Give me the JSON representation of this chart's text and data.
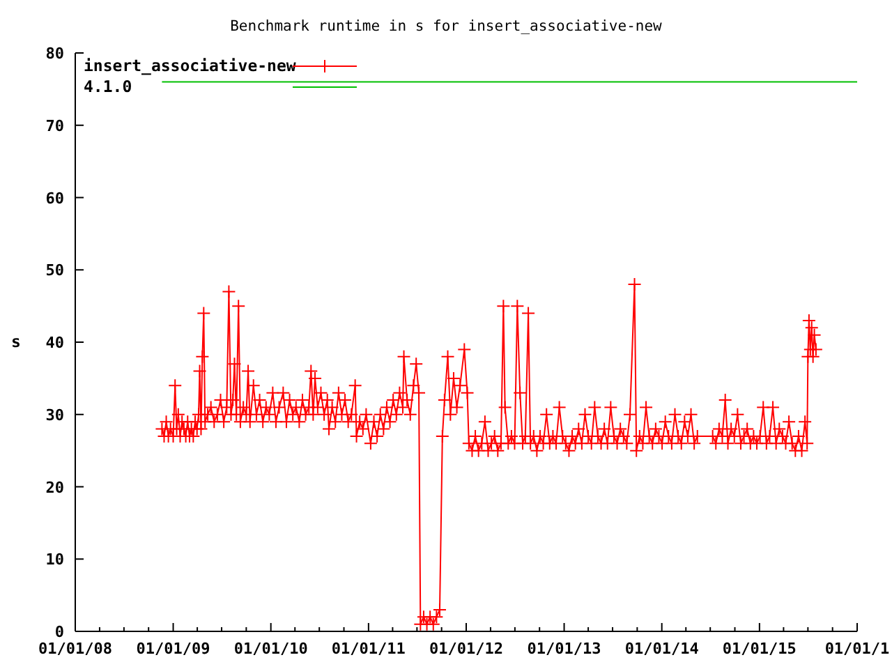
{
  "chart_data": {
    "type": "line",
    "title": "Benchmark runtime in s for insert_associative-new",
    "ylabel": "s",
    "xlim": [
      "2008-01-01",
      "2016-01-01"
    ],
    "xticks": [
      {
        "value": "2008-01-01",
        "label": "01/01/08"
      },
      {
        "value": "2008-04-01",
        "label": null
      },
      {
        "value": "2008-07-01",
        "label": null
      },
      {
        "value": "2008-10-01",
        "label": null
      },
      {
        "value": "2009-01-01",
        "label": "01/01/09"
      },
      {
        "value": "2009-04-01",
        "label": null
      },
      {
        "value": "2009-07-01",
        "label": null
      },
      {
        "value": "2009-10-01",
        "label": null
      },
      {
        "value": "2010-01-01",
        "label": "01/01/10"
      },
      {
        "value": "2010-04-01",
        "label": null
      },
      {
        "value": "2010-07-01",
        "label": null
      },
      {
        "value": "2010-10-01",
        "label": null
      },
      {
        "value": "2011-01-01",
        "label": "01/01/11"
      },
      {
        "value": "2011-04-01",
        "label": null
      },
      {
        "value": "2011-07-01",
        "label": null
      },
      {
        "value": "2011-10-01",
        "label": null
      },
      {
        "value": "2012-01-01",
        "label": "01/01/12"
      },
      {
        "value": "2012-04-01",
        "label": null
      },
      {
        "value": "2012-07-01",
        "label": null
      },
      {
        "value": "2012-10-01",
        "label": null
      },
      {
        "value": "2013-01-01",
        "label": "01/01/13"
      },
      {
        "value": "2013-04-01",
        "label": null
      },
      {
        "value": "2013-07-01",
        "label": null
      },
      {
        "value": "2013-10-01",
        "label": null
      },
      {
        "value": "2014-01-01",
        "label": "01/01/14"
      },
      {
        "value": "2014-04-01",
        "label": null
      },
      {
        "value": "2014-07-01",
        "label": null
      },
      {
        "value": "2014-10-01",
        "label": null
      },
      {
        "value": "2015-01-01",
        "label": "01/01/15"
      },
      {
        "value": "2015-04-01",
        "label": null
      },
      {
        "value": "2015-07-01",
        "label": null
      },
      {
        "value": "2015-10-01",
        "label": null
      },
      {
        "value": "2016-01-01",
        "label": "01/01/1"
      }
    ],
    "ylim": [
      0,
      80
    ],
    "yticks": [
      0,
      10,
      20,
      30,
      40,
      50,
      60,
      70,
      80
    ],
    "grid": false,
    "legend": "top left",
    "marker": "cross",
    "line_style": "solid",
    "series": [
      {
        "name": "insert_associative-new",
        "color": "#ff0000",
        "x": [
          "2008-11-20",
          "2008-11-28",
          "2008-12-06",
          "2008-12-14",
          "2008-12-22",
          "2009-01-01",
          "2009-01-08",
          "2009-01-14",
          "2009-01-20",
          "2009-01-27",
          "2009-02-03",
          "2009-02-10",
          "2009-02-17",
          "2009-02-24",
          "2009-03-03",
          "2009-03-10",
          "2009-03-17",
          "2009-03-24",
          "2009-03-31",
          "2009-04-06",
          "2009-04-10",
          "2009-04-15",
          "2009-04-20",
          "2009-04-25",
          "2009-04-30",
          "2009-05-10",
          "2009-05-22",
          "2009-06-03",
          "2009-06-15",
          "2009-06-27",
          "2009-07-09",
          "2009-07-20",
          "2009-07-28",
          "2009-08-05",
          "2009-08-12",
          "2009-08-18",
          "2009-08-25",
          "2009-09-02",
          "2009-09-09",
          "2009-09-20",
          "2009-10-01",
          "2009-10-08",
          "2009-10-15",
          "2009-10-28",
          "2009-11-08",
          "2009-11-20",
          "2009-12-02",
          "2009-12-14",
          "2009-12-26",
          "2010-01-08",
          "2010-01-20",
          "2010-02-01",
          "2010-02-16",
          "2010-02-28",
          "2010-03-12",
          "2010-03-24",
          "2010-04-05",
          "2010-04-17",
          "2010-04-29",
          "2010-05-11",
          "2010-05-23",
          "2010-05-31",
          "2010-06-08",
          "2010-06-15",
          "2010-06-25",
          "2010-07-07",
          "2010-07-19",
          "2010-07-31",
          "2010-08-06",
          "2010-08-18",
          "2010-08-30",
          "2010-09-11",
          "2010-09-23",
          "2010-10-05",
          "2010-10-17",
          "2010-10-29",
          "2010-11-12",
          "2010-11-17",
          "2010-11-29",
          "2010-12-11",
          "2010-12-23",
          "2011-01-09",
          "2011-01-21",
          "2011-02-02",
          "2011-02-14",
          "2011-02-26",
          "2011-03-10",
          "2011-03-22",
          "2011-04-03",
          "2011-04-15",
          "2011-04-27",
          "2011-05-09",
          "2011-05-13",
          "2011-05-25",
          "2011-06-06",
          "2011-06-18",
          "2011-06-28",
          "2011-07-08",
          "2011-07-14",
          "2011-07-26",
          "2011-08-07",
          "2011-08-19",
          "2011-08-31",
          "2011-09-12",
          "2011-09-24",
          "2011-10-04",
          "2011-10-12",
          "2011-10-24",
          "2011-11-03",
          "2011-11-15",
          "2011-11-27",
          "2011-12-09",
          "2011-12-25",
          "2012-01-05",
          "2012-01-11",
          "2012-01-23",
          "2012-02-04",
          "2012-02-16",
          "2012-02-28",
          "2012-03-11",
          "2012-03-23",
          "2012-04-04",
          "2012-04-16",
          "2012-04-28",
          "2012-05-10",
          "2012-05-19",
          "2012-05-25",
          "2012-06-06",
          "2012-06-18",
          "2012-06-30",
          "2012-07-10",
          "2012-07-20",
          "2012-07-30",
          "2012-08-09",
          "2012-08-20",
          "2012-08-28",
          "2012-09-09",
          "2012-09-21",
          "2012-10-03",
          "2012-10-15",
          "2012-10-27",
          "2012-11-08",
          "2012-11-20",
          "2012-12-02",
          "2012-12-14",
          "2012-12-26",
          "2013-01-07",
          "2013-01-19",
          "2013-01-31",
          "2013-02-12",
          "2013-02-24",
          "2013-03-08",
          "2013-03-20",
          "2013-04-01",
          "2013-04-13",
          "2013-04-25",
          "2013-05-07",
          "2013-05-19",
          "2013-05-31",
          "2013-06-12",
          "2013-06-24",
          "2013-07-06",
          "2013-07-18",
          "2013-07-30",
          "2013-08-11",
          "2013-08-23",
          "2013-09-04",
          "2013-09-21",
          "2013-09-28",
          "2013-10-10",
          "2013-10-22",
          "2013-11-03",
          "2013-11-15",
          "2013-11-27",
          "2013-12-09",
          "2013-12-21",
          "2014-01-02",
          "2014-01-14",
          "2014-01-26",
          "2014-02-07",
          "2014-02-19",
          "2014-03-03",
          "2014-03-15",
          "2014-03-27",
          "2014-04-08",
          "2014-04-20",
          "2014-05-02",
          "2014-05-14",
          "2014-07-10",
          "2014-07-22",
          "2014-08-03",
          "2014-08-15",
          "2014-08-26",
          "2014-09-05",
          "2014-09-17",
          "2014-09-29",
          "2014-10-11",
          "2014-10-23",
          "2014-11-04",
          "2014-11-16",
          "2014-11-28",
          "2014-12-10",
          "2014-12-22",
          "2015-01-03",
          "2015-01-15",
          "2015-01-27",
          "2015-02-08",
          "2015-02-20",
          "2015-03-04",
          "2015-03-16",
          "2015-03-28",
          "2015-04-09",
          "2015-04-21",
          "2015-05-03",
          "2015-05-15",
          "2015-05-27",
          "2015-06-08",
          "2015-06-20",
          "2015-06-28",
          "2015-07-01",
          "2015-07-05",
          "2015-07-10",
          "2015-07-15",
          "2015-07-20",
          "2015-07-25",
          "2015-07-31"
        ],
        "values": [
          28,
          27,
          29,
          27,
          28,
          27,
          34,
          28,
          30,
          27,
          29,
          28,
          27,
          29,
          27,
          28,
          27,
          29,
          28,
          30,
          36,
          28,
          38,
          44,
          29,
          30,
          31,
          29,
          30,
          32,
          29,
          31,
          47,
          30,
          32,
          37,
          30,
          45,
          29,
          31,
          30,
          36,
          29,
          34,
          30,
          32,
          29,
          31,
          30,
          33,
          29,
          31,
          33,
          29,
          32,
          30,
          31,
          29,
          32,
          30,
          31,
          36,
          30,
          35,
          31,
          33,
          30,
          32,
          28,
          31,
          29,
          33,
          30,
          32,
          29,
          30,
          34,
          27,
          29,
          28,
          30,
          26,
          29,
          27,
          30,
          28,
          31,
          29,
          32,
          30,
          33,
          31,
          38,
          32,
          30,
          34,
          37,
          33,
          1,
          2,
          1,
          2,
          1,
          2,
          3,
          27,
          32,
          38,
          30,
          35,
          31,
          34,
          39,
          33,
          26,
          25,
          27,
          25,
          26,
          29,
          25,
          26,
          27,
          25,
          26,
          45,
          31,
          26,
          27,
          26,
          45,
          33,
          26,
          27,
          44,
          26,
          27,
          25,
          27,
          26,
          30,
          26,
          27,
          26,
          31,
          27,
          26,
          25,
          27,
          26,
          28,
          26,
          30,
          27,
          26,
          31,
          27,
          26,
          28,
          26,
          31,
          27,
          26,
          28,
          27,
          26,
          30,
          48,
          25,
          27,
          26,
          31,
          27,
          26,
          28,
          27,
          26,
          29,
          27,
          26,
          30,
          27,
          26,
          29,
          27,
          30,
          26,
          27,
          27,
          26,
          28,
          27,
          32,
          26,
          28,
          27,
          30,
          26,
          27,
          28,
          26,
          27,
          26,
          27,
          31,
          26,
          27,
          31,
          26,
          28,
          27,
          26,
          29,
          26,
          25,
          27,
          25,
          29,
          26,
          38,
          43,
          39,
          42,
          38,
          41,
          39
        ]
      },
      {
        "name": "4.1.0",
        "color": "#00c000",
        "marker": "none",
        "x": [
          "2008-11-20",
          "2016-01-01"
        ],
        "values": [
          76,
          76
        ]
      }
    ]
  }
}
